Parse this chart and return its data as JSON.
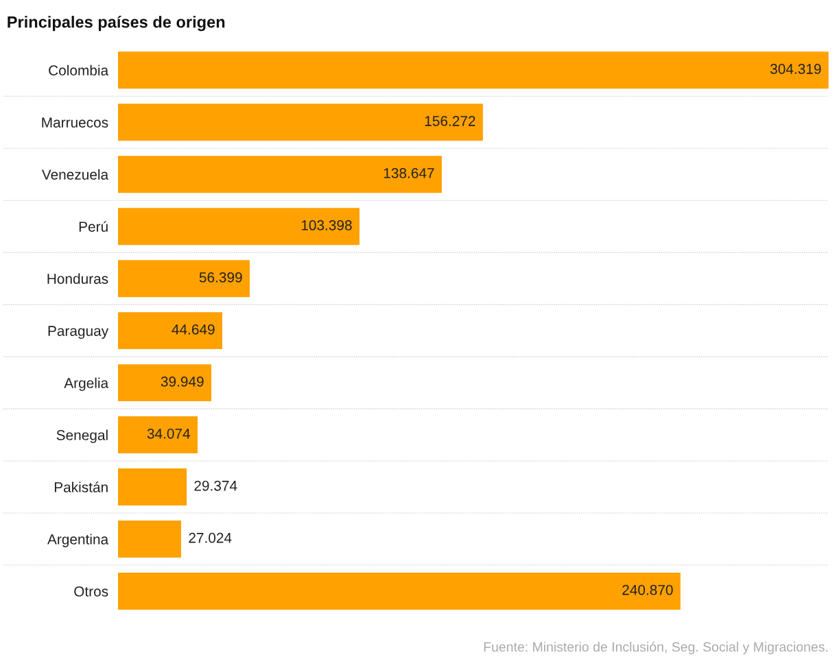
{
  "chart_data": {
    "type": "bar",
    "orientation": "horizontal",
    "title": "Principales países de origen",
    "categories": [
      "Colombia",
      "Marruecos",
      "Venezuela",
      "Perú",
      "Honduras",
      "Paraguay",
      "Argelia",
      "Senegal",
      "Pakistán",
      "Argentina",
      "Otros"
    ],
    "values": [
      304319,
      156272,
      138647,
      103398,
      56399,
      44649,
      39949,
      34074,
      29374,
      27024,
      240870
    ],
    "value_labels": [
      "304.319",
      "156.272",
      "138.647",
      "103.398",
      "56.399",
      "44.649",
      "39.949",
      "34.074",
      "29.374",
      "27.024",
      "240.870"
    ],
    "color": "#ffa100",
    "grid": "y",
    "legend": false,
    "annotations": [
      "Fuente: Ministerio de Inclusión, Seg. Social y Migraciones."
    ]
  }
}
